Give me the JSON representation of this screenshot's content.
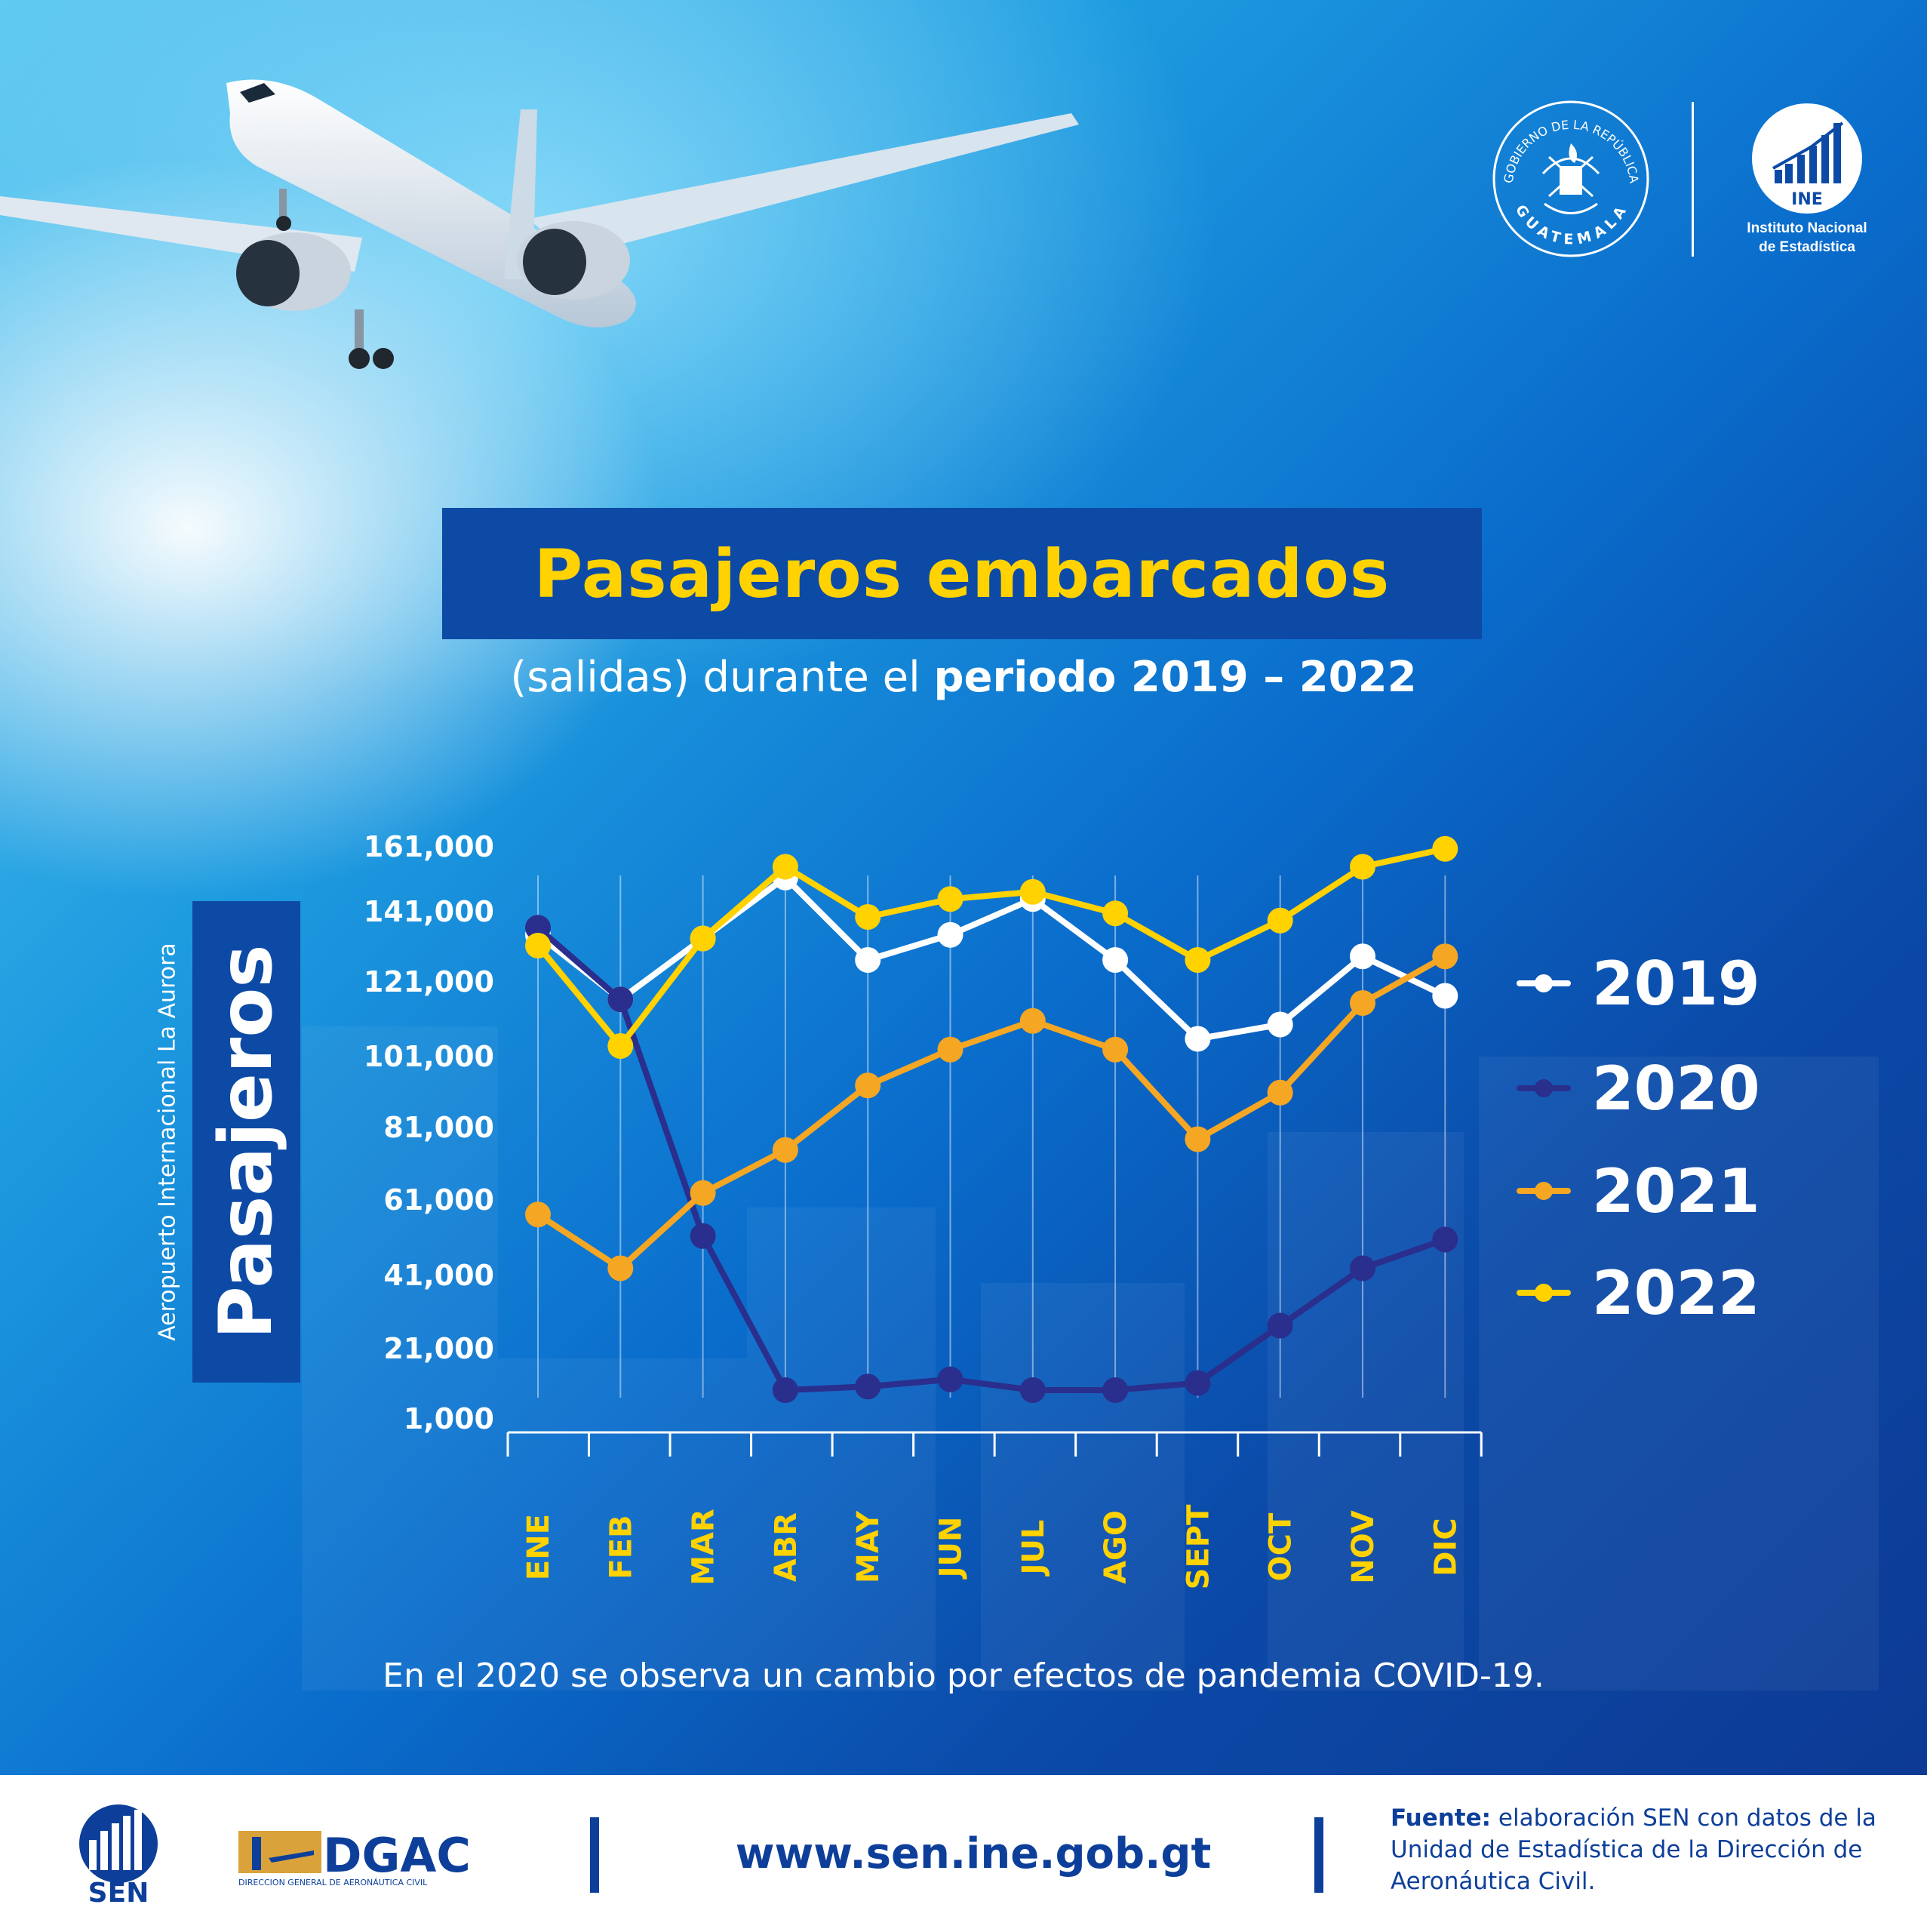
{
  "header": {
    "gov_seal_text_top": "GOBIERNO DE LA REPÚBLICA",
    "gov_seal_text_bottom": "GUATEMALA",
    "ine_abbrev": "INE",
    "ine_caption_line1": "Instituto Nacional",
    "ine_caption_line2": "de Estadística"
  },
  "title": "Pasajeros embarcados",
  "subtitle": {
    "regular": "(salidas) durante el ",
    "bold": "periodo 2019 – 2022"
  },
  "y_caption": {
    "main": "Pasajeros",
    "secondary": "Aeropuerto Internacional La Aurora"
  },
  "note": "En el 2020 se observa un cambio por efectos de pandemia COVID-19.",
  "footer": {
    "sen_logo_text": "SEN",
    "dgac_logo_text": "DGAC",
    "dgac_logo_subtext": "DIRECCION GENERAL DE AERONÁUTICA CIVIL",
    "website": "www.sen.ine.gob.gt",
    "source_bold": "Fuente:",
    "source_rest": " elaboración SEN con datos de la Unidad de Estadística de la Dirección de Aeronáutica Civil."
  },
  "colors": {
    "title_text": "#ffd200",
    "title_box": "#0d4aa6",
    "month_labels": "#ffd200",
    "footer_text": "#0d3f9a"
  },
  "chart_data": {
    "type": "line",
    "title": "Pasajeros embarcados",
    "ylabel": "Pasajeros",
    "categories": [
      "ENE",
      "FEB",
      "MAR",
      "ABR",
      "MAY",
      "JUN",
      "JUL",
      "AGO",
      "SEPT",
      "OCT",
      "NOV",
      "DIC"
    ],
    "y_ticks": [
      "1,000",
      "21,000",
      "41,000",
      "61,000",
      "81,000",
      "101,000",
      "121,000",
      "141,000",
      "161,000"
    ],
    "ylim": [
      1000,
      161000
    ],
    "grid": "vertical",
    "legend_position": "right",
    "series": [
      {
        "name": "2019",
        "color": "#ffffff",
        "values": [
          136000,
          118000,
          135000,
          152000,
          129000,
          136000,
          146000,
          129000,
          107000,
          111000,
          130000,
          119000
        ]
      },
      {
        "name": "2020",
        "color": "#2a2e8c",
        "values": [
          138000,
          118000,
          52000,
          9000,
          10000,
          12000,
          9000,
          9000,
          11000,
          27000,
          43000,
          51000
        ]
      },
      {
        "name": "2021",
        "color": "#f5a623",
        "values": [
          58000,
          43000,
          64000,
          76000,
          94000,
          104000,
          112000,
          104000,
          79000,
          92000,
          117000,
          130000
        ]
      },
      {
        "name": "2022",
        "color": "#ffd200",
        "values": [
          133000,
          105000,
          135000,
          155000,
          141000,
          146000,
          148000,
          142000,
          129000,
          140000,
          155000,
          160000
        ]
      }
    ]
  }
}
